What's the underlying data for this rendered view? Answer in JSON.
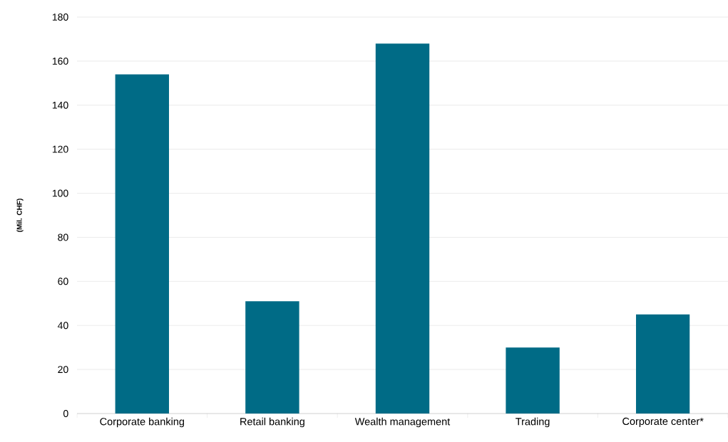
{
  "chart_data": {
    "type": "bar",
    "ylabel": "(Mil. CHF)",
    "categories": [
      "Corporate banking",
      "Retail banking",
      "Wealth management",
      "Trading",
      "Corporate center*"
    ],
    "values": [
      154,
      51,
      168,
      30,
      45
    ],
    "color": "#006b86",
    "ylim": [
      0,
      180
    ],
    "yticks": [
      0,
      20,
      40,
      60,
      80,
      100,
      120,
      140,
      160,
      180
    ],
    "grid": "y"
  }
}
